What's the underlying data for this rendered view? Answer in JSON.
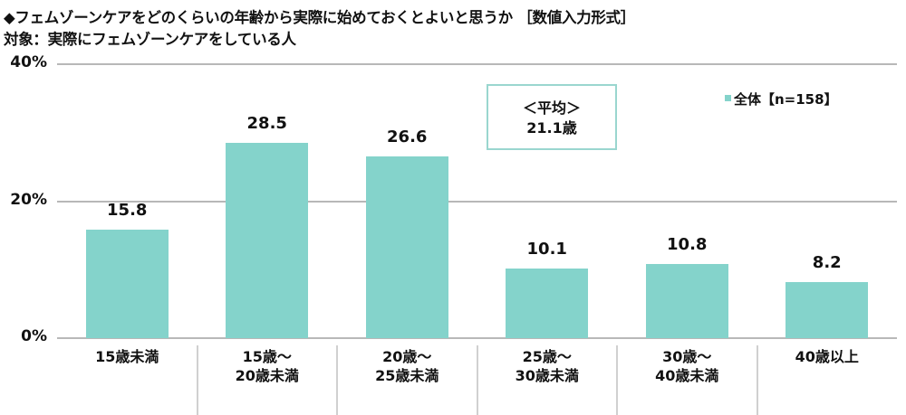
{
  "title": {
    "line1": "◆フェムゾーンケアをどのくらいの年齢から実際に始めておくとよいと思うか ［数値入力形式］",
    "line2": "対象：実際にフェムゾーンケアをしている人"
  },
  "colors": {
    "bar": "#84D3CB",
    "grid": "#b8b8b8",
    "separator": "#d0d0d0",
    "avg_border": "#9ad6cf"
  },
  "legend": {
    "label": "全体【n=158】"
  },
  "average_box": {
    "label": "＜平均＞",
    "value": "21.1歳"
  },
  "y_ticks": [
    "40%",
    "20%",
    "0%"
  ],
  "chart_data": {
    "type": "bar",
    "title": "フェムゾーンケアをどのくらいの年齢から実際に始めておくとよいと思うか［数値入力形式］",
    "subtitle": "対象：実際にフェムゾーンケアをしている人",
    "categories": [
      "15歳未満",
      "15歳～\n20歳未満",
      "20歳～\n25歳未満",
      "25歳～\n30歳未満",
      "30歳～\n40歳未満",
      "40歳以上"
    ],
    "series": [
      {
        "name": "全体【n=158】",
        "values": [
          15.8,
          28.5,
          26.6,
          10.1,
          10.8,
          8.2
        ]
      }
    ],
    "value_labels": [
      "15.8",
      "28.5",
      "26.6",
      "10.1",
      "10.8",
      "8.2"
    ],
    "xlabel": "",
    "ylabel": "",
    "ylim": [
      0,
      40
    ],
    "yticks": [
      0,
      20,
      40
    ],
    "ytick_labels": [
      "0%",
      "20%",
      "40%"
    ],
    "grid": true,
    "legend_position": "top-right",
    "annotations": [
      "＜平均＞ 21.1歳"
    ]
  }
}
